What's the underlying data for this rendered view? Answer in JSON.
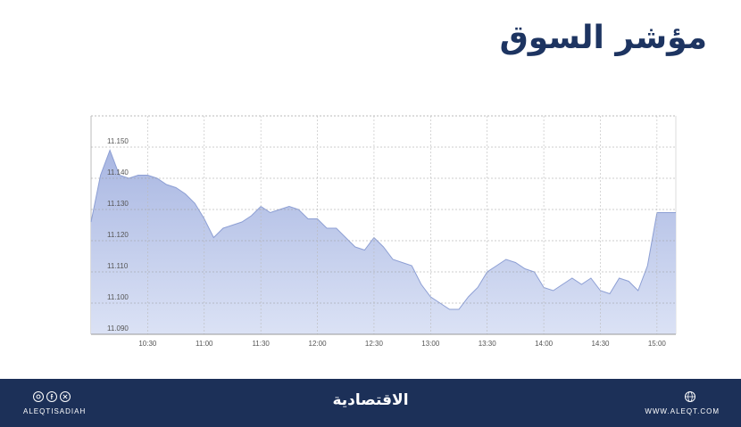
{
  "title": "مؤشر السوق",
  "chart_data": {
    "type": "area",
    "color": "#8d9fd4",
    "grid": true,
    "x": [
      "10:00",
      "10:05",
      "10:10",
      "10:15",
      "10:20",
      "10:25",
      "10:30",
      "10:35",
      "10:40",
      "10:45",
      "10:50",
      "10:55",
      "11:00",
      "11:05",
      "11:10",
      "11:15",
      "11:20",
      "11:25",
      "11:30",
      "11:35",
      "11:40",
      "11:45",
      "11:50",
      "11:55",
      "12:00",
      "12:05",
      "12:10",
      "12:15",
      "12:20",
      "12:25",
      "12:30",
      "12:35",
      "12:40",
      "12:45",
      "12:50",
      "12:55",
      "13:00",
      "13:05",
      "13:10",
      "13:15",
      "13:20",
      "13:25",
      "13:30",
      "13:35",
      "13:40",
      "13:45",
      "13:50",
      "13:55",
      "14:00",
      "14:05",
      "14:10",
      "14:15",
      "14:20",
      "14:25",
      "14:30",
      "14:35",
      "14:40",
      "14:45",
      "14:50",
      "14:55",
      "15:00",
      "15:05",
      "15:10"
    ],
    "values": [
      11.126,
      11.141,
      11.149,
      11.141,
      11.14,
      11.141,
      11.141,
      11.14,
      11.138,
      11.137,
      11.135,
      11.132,
      11.127,
      11.121,
      11.124,
      11.125,
      11.126,
      11.128,
      11.131,
      11.129,
      11.13,
      11.131,
      11.13,
      11.127,
      11.127,
      11.124,
      11.124,
      11.121,
      11.118,
      11.117,
      11.121,
      11.118,
      11.114,
      11.113,
      11.112,
      11.106,
      11.102,
      11.1,
      11.098,
      11.098,
      11.102,
      11.105,
      11.11,
      11.112,
      11.114,
      11.113,
      11.111,
      11.11,
      11.105,
      11.104,
      11.106,
      11.108,
      11.106,
      11.108,
      11.104,
      11.103,
      11.108,
      11.107,
      11.104,
      11.112,
      11.129,
      11.129,
      11.129
    ],
    "xlim": [
      "10:00",
      "15:10"
    ],
    "xticks": [
      "10:30",
      "11:00",
      "11:30",
      "12:00",
      "12:30",
      "13:00",
      "13:30",
      "14:00",
      "14:30",
      "15:00"
    ],
    "ylim": [
      11.09,
      11.16
    ],
    "yticks": [
      {
        "value": 11.09,
        "label": "11.090"
      },
      {
        "value": 11.1,
        "label": "11.100"
      },
      {
        "value": 11.11,
        "label": "11.110"
      },
      {
        "value": 11.12,
        "label": "11.120"
      },
      {
        "value": 11.13,
        "label": "11.130"
      },
      {
        "value": 11.14,
        "label": "11.140"
      },
      {
        "value": 11.15,
        "label": "11.150"
      }
    ]
  },
  "footer": {
    "handle": "ALEQTISADIAH",
    "logo": "الاقتصادية",
    "website": "WWW.ALEQT.COM"
  }
}
